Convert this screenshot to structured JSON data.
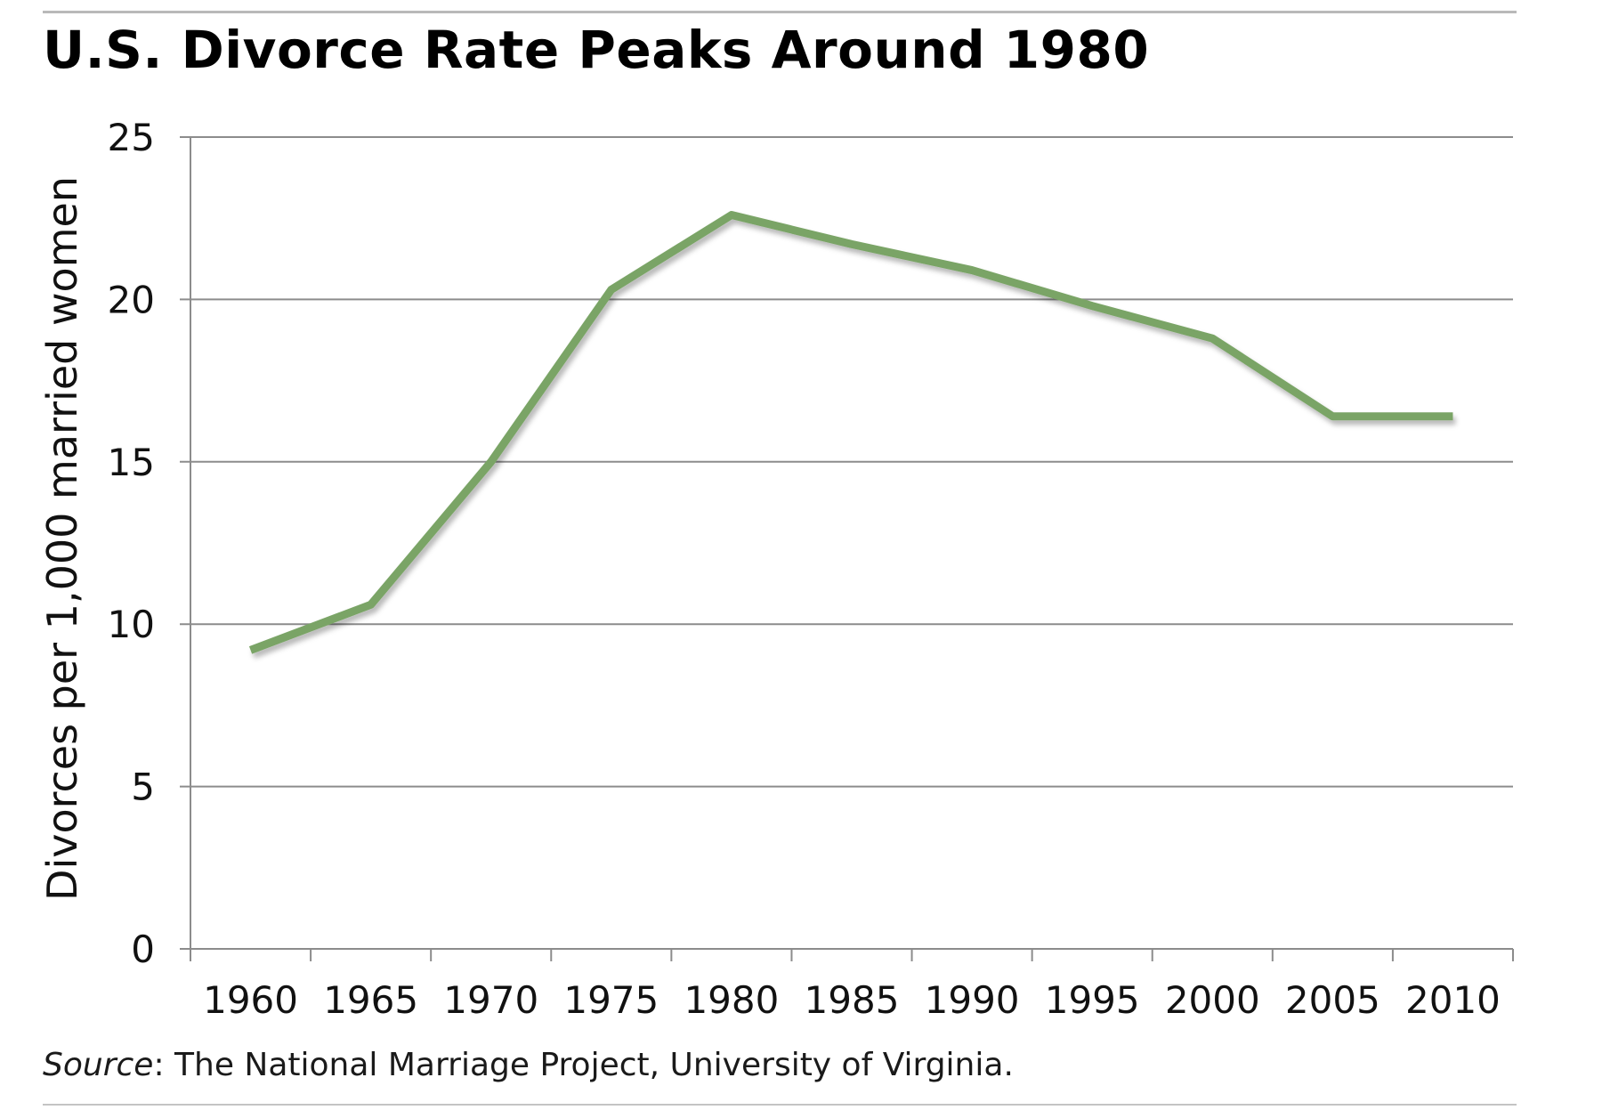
{
  "chart_data": {
    "type": "line",
    "title": "U.S. Divorce Rate Peaks Around 1980",
    "xlabel": "",
    "ylabel": "Divorces per 1,000 married women",
    "categories": [
      "1960",
      "1965",
      "1970",
      "1975",
      "1980",
      "1985",
      "1990",
      "1995",
      "2000",
      "2005",
      "2010"
    ],
    "series": [
      {
        "values": [
          9.2,
          10.6,
          15.0,
          20.3,
          22.6,
          21.7,
          20.9,
          19.8,
          18.8,
          16.4,
          16.4
        ],
        "color": "#7aa466"
      }
    ],
    "yticks": [
      "0",
      "5",
      "10",
      "15",
      "20",
      "25"
    ],
    "ylim": [
      0,
      25
    ],
    "grid": true,
    "legend": "none"
  },
  "source": {
    "label": "Source",
    "text": ": The National Marriage Project, University of Virginia."
  },
  "colors": {
    "line": "#7aa466",
    "grid": "#8c8c8c",
    "axis": "#8c8c8c"
  }
}
